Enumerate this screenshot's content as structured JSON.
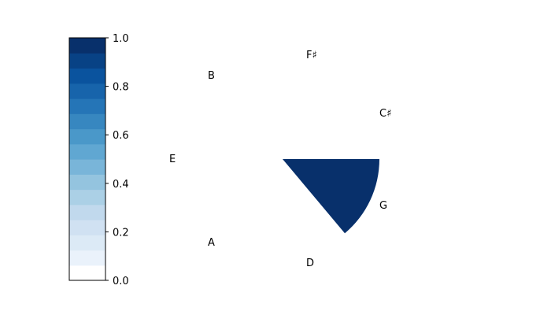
{
  "chart_data": {
    "type": "polar-sector",
    "title": "",
    "categories": [
      "C♯",
      "F♯",
      "B",
      "E",
      "A",
      "D",
      "G"
    ],
    "sectors": [
      {
        "theta_start_deg": -50,
        "theta_end_deg": 0,
        "r": 1.0,
        "value": 1.0
      }
    ],
    "r_max": 1.0,
    "grid": false,
    "colorbar": {
      "colormap": "Blues",
      "range": [
        0.0,
        1.0
      ],
      "ticks": [
        "0.0",
        "0.2",
        "0.4",
        "0.6",
        "0.8",
        "1.0"
      ],
      "tick_values": [
        0.0,
        0.2,
        0.4,
        0.6,
        0.8,
        1.0
      ],
      "levels": 16,
      "placement": "left"
    }
  }
}
